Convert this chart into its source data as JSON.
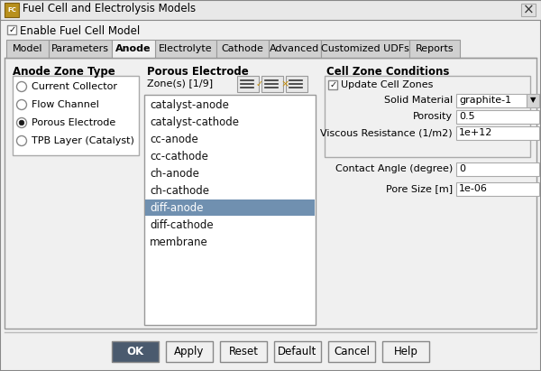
{
  "title": "Fuel Cell and Electrolysis Models",
  "bg_color": "#f0f0f0",
  "title_bar_text": "Fuel Cell and Electrolysis Models",
  "checkbox_enable": "Enable Fuel Cell Model",
  "tabs": [
    "Model",
    "Parameters",
    "Anode",
    "Electrolyte",
    "Cathode",
    "Advanced",
    "Customized UDFs",
    "Reports"
  ],
  "active_tab": "Anode",
  "zone_type_label": "Anode Zone Type",
  "zone_types": [
    "Current Collector",
    "Flow Channel",
    "Porous Electrode",
    "TPB Layer (Catalyst)"
  ],
  "selected_zone": 2,
  "porous_label": "Porous Electrode",
  "zone_list_label": "Zone(s) [1/9]",
  "zones": [
    "catalyst-anode",
    "catalyst-cathode",
    "cc-anode",
    "cc-cathode",
    "ch-anode",
    "ch-cathode",
    "diff-anode",
    "diff-cathode",
    "membrane"
  ],
  "selected_zone_item": "diff-anode",
  "selected_zone_idx": 6,
  "cell_zone_label": "Cell Zone Conditions",
  "update_cell_zones": true,
  "solid_material": "graphite-1",
  "porosity": "0.5",
  "viscous_resistance": "1e+12",
  "contact_angle": "0",
  "pore_size": "1e-06",
  "buttons": [
    "OK",
    "Apply",
    "Reset",
    "Default",
    "Cancel",
    "Help"
  ],
  "ok_btn_color": "#4a5a6e",
  "ok_btn_text_color": "#ffffff",
  "highlight_color": "#7090b0",
  "tab_inactive_bg": "#d0d0d0",
  "tab_active_bg": "#f0f0f0"
}
